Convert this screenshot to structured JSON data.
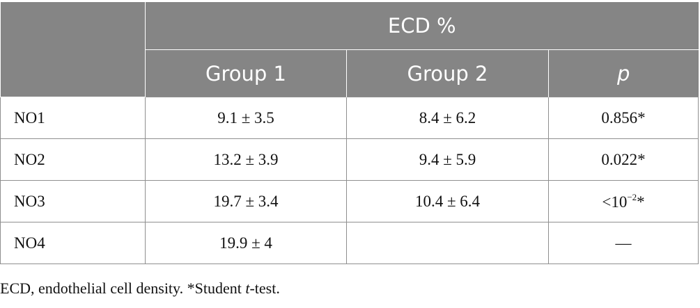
{
  "header": {
    "group_title": "ECD %",
    "columns": [
      "Group 1",
      "Group 2",
      "p"
    ]
  },
  "rows": [
    {
      "label": "NO1",
      "g1": "9.1 ± 3.5",
      "g2": "8.4 ± 6.2",
      "p": "0.856*"
    },
    {
      "label": "NO2",
      "g1": "13.2 ± 3.9",
      "g2": "9.4 ± 5.9",
      "p": "0.022*"
    },
    {
      "label": "NO3",
      "g1": "19.7 ± 3.4",
      "g2": "10.4 ± 6.4",
      "p_base": "<10",
      "p_exp": "−2",
      "p_mark": "*"
    },
    {
      "label": "NO4",
      "g1": "19.9 ± 4",
      "g2": "",
      "p": "—"
    }
  ],
  "footnote": {
    "text_a": "ECD, endothelial cell density. *Student ",
    "text_it": "t",
    "text_b": "-test."
  }
}
